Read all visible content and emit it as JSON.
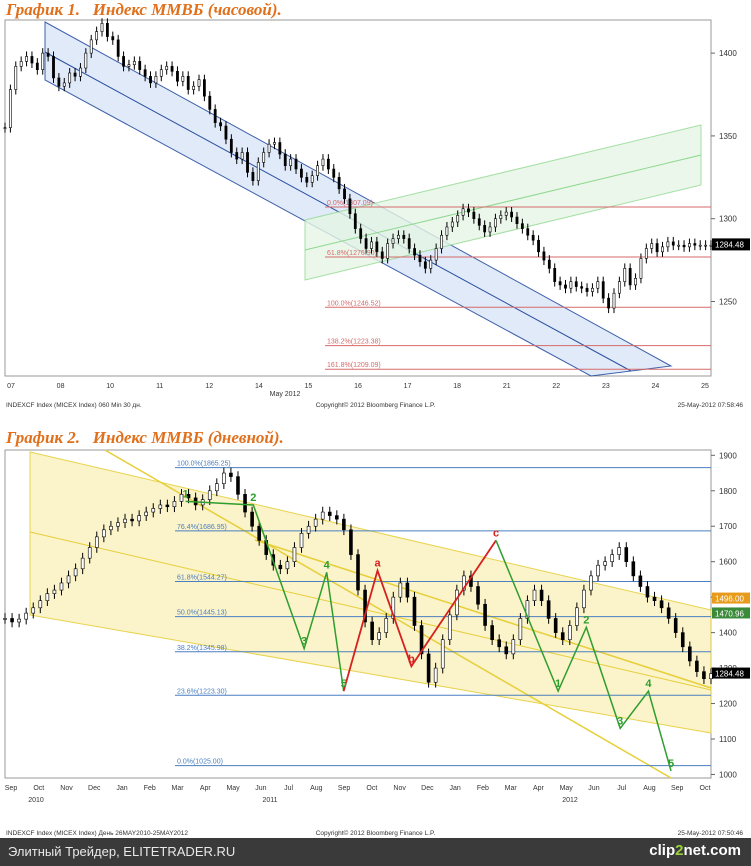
{
  "chart_data": [
    {
      "type": "line",
      "title": "График 1.   Индекс ММВБ (часовой).",
      "x_labels": [
        "07",
        "08",
        "10",
        "11",
        "12",
        "14",
        "15",
        "16",
        "17",
        "18",
        "21",
        "22",
        "23",
        "24",
        "25"
      ],
      "x_month_label": "May 2012",
      "y_ticks": [
        1250,
        1300,
        1350,
        1400
      ],
      "ylim": [
        1205,
        1420
      ],
      "last_value_label": "1284.48",
      "x": [
        0,
        1,
        2,
        3,
        4,
        5,
        6,
        7,
        8,
        9,
        10,
        11,
        12,
        13,
        14,
        15,
        16,
        17,
        18,
        19,
        20,
        21,
        22,
        23,
        24,
        25,
        26,
        27,
        28,
        29,
        30,
        31,
        32,
        33,
        34,
        35,
        36,
        37,
        38,
        39,
        40,
        41,
        42,
        43,
        44,
        45,
        46,
        47,
        48,
        49,
        50,
        51,
        52,
        53,
        54,
        55,
        56,
        57,
        58,
        59,
        60,
        61,
        62,
        63,
        64,
        65,
        66,
        67,
        68,
        69,
        70,
        71,
        72,
        73,
        74,
        75,
        76,
        77,
        78,
        79,
        80,
        81,
        82,
        83,
        84,
        85,
        86,
        87,
        88,
        89,
        90,
        91,
        92,
        93,
        94,
        95,
        96,
        97,
        98,
        99,
        100,
        101,
        102,
        103,
        104,
        105,
        106,
        107,
        108,
        109,
        110,
        111,
        112,
        113,
        114,
        115,
        116,
        117,
        118,
        119,
        120,
        121,
        122,
        123,
        124,
        125,
        126,
        127,
        128,
        129,
        130,
        131
      ],
      "values": [
        1355,
        1378,
        1392,
        1395,
        1398,
        1394,
        1390,
        1400,
        1398,
        1385,
        1380,
        1382,
        1388,
        1386,
        1391,
        1400,
        1408,
        1413,
        1418,
        1410,
        1408,
        1398,
        1392,
        1393,
        1395,
        1390,
        1386,
        1382,
        1386,
        1390,
        1392,
        1389,
        1383,
        1386,
        1378,
        1380,
        1384,
        1374,
        1366,
        1358,
        1356,
        1348,
        1340,
        1336,
        1340,
        1328,
        1323,
        1334,
        1340,
        1345,
        1346,
        1339,
        1332,
        1336,
        1330,
        1325,
        1322,
        1326,
        1332,
        1336,
        1330,
        1325,
        1318,
        1312,
        1303,
        1294,
        1288,
        1282,
        1286,
        1280,
        1276,
        1285,
        1288,
        1290,
        1288,
        1282,
        1278,
        1274,
        1270,
        1275,
        1282,
        1290,
        1295,
        1298,
        1302,
        1306,
        1304,
        1300,
        1296,
        1292,
        1295,
        1300,
        1302,
        1304,
        1301,
        1297,
        1294,
        1290,
        1287,
        1280,
        1275,
        1270,
        1262,
        1260,
        1258,
        1262,
        1259,
        1258,
        1256,
        1258,
        1262,
        1252,
        1246,
        1255,
        1262,
        1270,
        1260,
        1264,
        1276,
        1282,
        1285,
        1280,
        1283,
        1286,
        1284,
        1284,
        1283,
        1285,
        1284,
        1284,
        1284,
        1284
      ],
      "fib_levels": [
        {
          "label": "0.0%(1307.09)",
          "value": 1307.09
        },
        {
          "label": "61.8%(1276.90)",
          "value": 1276.9
        },
        {
          "label": "100.0%(1246.52)",
          "value": 1246.52
        },
        {
          "label": "138.2%(1223.38)",
          "value": 1223.38
        },
        {
          "label": "161.8%(1209.09)",
          "value": 1209.09
        }
      ],
      "footer_left": "INDEXCF Index (MICEX Index) 060 Min 30 дн.",
      "footer_center": "Copyright© 2012 Bloomberg Finance L.P.",
      "footer_right": "25-May-2012 07:58:46",
      "colors": {
        "channel_fill": "#dde8f8",
        "channel_line": "#2a4fa0",
        "green_channel": "#8ed88e",
        "fib_line": "#d66a6a",
        "candles": "#000000"
      }
    },
    {
      "type": "line",
      "title": "График 2.   Индекс ММВБ (дневной).",
      "x_labels": [
        "Sep",
        "Oct",
        "Nov",
        "Dec",
        "Jan",
        "Feb",
        "Mar",
        "Apr",
        "May",
        "Jun",
        "Jul",
        "Aug",
        "Sep",
        "Oct",
        "Nov",
        "Dec",
        "Jan",
        "Feb",
        "Mar",
        "Apr",
        "May",
        "Jun",
        "Jul",
        "Aug",
        "Sep",
        "Oct"
      ],
      "x_year_labels": [
        "2010",
        "2011",
        "2012"
      ],
      "y_ticks": [
        1000,
        1100,
        1200,
        1300,
        1400,
        1500,
        1600,
        1700,
        1800,
        1900
      ],
      "ylim": [
        990,
        1915
      ],
      "price_labels": [
        "1496.00",
        "1470.96",
        "1284.48"
      ],
      "x": [
        0,
        1,
        2,
        3,
        4,
        5,
        6,
        7,
        8,
        9,
        10,
        11,
        12,
        13,
        14,
        15,
        16,
        17,
        18,
        19,
        20,
        21,
        22,
        23,
        24,
        25,
        26,
        27,
        28,
        29,
        30,
        31,
        32,
        33,
        34,
        35,
        36,
        37,
        38,
        39,
        40,
        41,
        42,
        43,
        44,
        45,
        46,
        47,
        48,
        49,
        50,
        51,
        52,
        53,
        54,
        55,
        56,
        57,
        58,
        59,
        60,
        61,
        62,
        63,
        64,
        65,
        66,
        67,
        68,
        69,
        70,
        71,
        72,
        73,
        74,
        75,
        76,
        77,
        78,
        79,
        80,
        81,
        82,
        83,
        84,
        85,
        86,
        87,
        88,
        89,
        90,
        91,
        92,
        93,
        94,
        95,
        96,
        97,
        98,
        99,
        100
      ],
      "values": [
        1440,
        1430,
        1438,
        1455,
        1470,
        1490,
        1510,
        1520,
        1540,
        1560,
        1580,
        1610,
        1640,
        1670,
        1690,
        1700,
        1710,
        1720,
        1715,
        1730,
        1740,
        1750,
        1760,
        1755,
        1770,
        1790,
        1780,
        1760,
        1775,
        1800,
        1820,
        1850,
        1840,
        1790,
        1740,
        1700,
        1660,
        1620,
        1590,
        1580,
        1600,
        1640,
        1680,
        1700,
        1720,
        1740,
        1730,
        1720,
        1690,
        1620,
        1520,
        1430,
        1380,
        1400,
        1440,
        1500,
        1540,
        1500,
        1420,
        1340,
        1260,
        1300,
        1380,
        1450,
        1520,
        1560,
        1530,
        1480,
        1420,
        1380,
        1360,
        1340,
        1380,
        1440,
        1490,
        1520,
        1490,
        1440,
        1400,
        1380,
        1420,
        1470,
        1520,
        1560,
        1590,
        1600,
        1620,
        1640,
        1600,
        1560,
        1530,
        1500,
        1490,
        1470,
        1440,
        1400,
        1360,
        1320,
        1290,
        1270,
        1284
      ],
      "fib_levels": [
        {
          "label": "100.0%(1865.25)",
          "value": 1865.25
        },
        {
          "label": "76.4%(1686.95)",
          "value": 1686.95
        },
        {
          "label": "61.8%(1544.27)",
          "value": 1544.27
        },
        {
          "label": "50.0%(1445.13)",
          "value": 1445.13
        },
        {
          "label": "38.2%(1345.98)",
          "value": 1345.98
        },
        {
          "label": "23.6%(1223.30)",
          "value": 1223.3
        },
        {
          "label": "0.0%(1025.00)",
          "value": 1025.0
        }
      ],
      "wave_labels": [
        {
          "label": "1",
          "x": 32,
          "y": 1770,
          "color": "#2e9e2e"
        },
        {
          "label": "2",
          "x": 44,
          "y": 1760,
          "color": "#2e9e2e"
        },
        {
          "label": "3",
          "x": 53,
          "y": 1355,
          "color": "#2e9e2e"
        },
        {
          "label": "4",
          "x": 57,
          "y": 1570,
          "color": "#2e9e2e"
        },
        {
          "label": "5",
          "x": 60,
          "y": 1235,
          "color": "#2e9e2e"
        },
        {
          "label": "a",
          "x": 66,
          "y": 1575,
          "color": "#d62020"
        },
        {
          "label": "b",
          "x": 72,
          "y": 1305,
          "color": "#d62020"
        },
        {
          "label": "c",
          "x": 87,
          "y": 1660,
          "color": "#d62020"
        },
        {
          "label": "1",
          "x": 98,
          "y": 1235,
          "color": "#2e9e2e"
        },
        {
          "label": "2",
          "x": 103,
          "y": 1415,
          "color": "#2e9e2e"
        },
        {
          "label": "3",
          "x": 109,
          "y": 1130,
          "color": "#2e9e2e"
        },
        {
          "label": "4",
          "x": 114,
          "y": 1235,
          "color": "#2e9e2e"
        },
        {
          "label": "5",
          "x": 118,
          "y": 1010,
          "color": "#2e9e2e"
        }
      ],
      "footer_left": "INDEXCF Index (MICEX Index) Дeнь 26MAY2010-25MAY2012",
      "footer_center": "Copyright© 2012 Bloomberg Finance L.P.",
      "footer_right": "25-May-2012 07:50:46",
      "colors": {
        "channel_fill": "#fbf2c4",
        "channel_line": "#e6cf3a",
        "fib_line": "#4a7fc0",
        "wave_green": "#2e9e2e",
        "wave_red": "#d62020",
        "candles": "#000000"
      }
    }
  ],
  "footer": {
    "site_text": "Элитный Трейдер, ELITETRADER.RU",
    "logo_prefix": "clip",
    "logo_accent": "2",
    "logo_suffix": "net.com"
  }
}
